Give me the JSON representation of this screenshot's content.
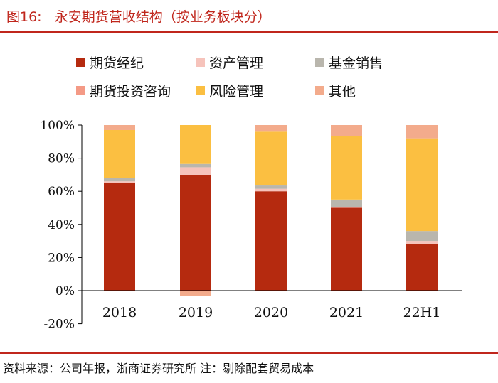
{
  "header": {
    "title": "图16:   永安期货营收结构（按业务板块分）"
  },
  "footer": {
    "source": "资料来源：公司年报，浙商证券研究所 注：剔除配套贸易成本"
  },
  "chart_data": {
    "type": "bar",
    "stacked": true,
    "title": "永安期货营收结构（按业务板块分）",
    "categories": [
      "2018",
      "2019",
      "2020",
      "2021",
      "22H1"
    ],
    "ylim": [
      -20,
      100
    ],
    "yticks": [
      -20,
      0,
      20,
      40,
      60,
      80,
      100
    ],
    "ytick_labels": [
      "-20%",
      "0%",
      "20%",
      "40%",
      "60%",
      "80%",
      "100%"
    ],
    "legend_position": "top",
    "series": [
      {
        "name": "期货经纪",
        "color": "#b52a0f",
        "values": [
          65,
          70,
          60,
          50,
          28
        ]
      },
      {
        "name": "资产管理",
        "color": "#f6c3bb",
        "values": [
          1,
          4.5,
          1.5,
          0.5,
          2
        ]
      },
      {
        "name": "基金销售",
        "color": "#b9b6ad",
        "values": [
          2,
          2,
          2,
          4.5,
          6
        ]
      },
      {
        "name": "期货投资咨询",
        "color": "#f49a86",
        "values": [
          0,
          0,
          0,
          0,
          0
        ]
      },
      {
        "name": "风险管理",
        "color": "#fbbf41",
        "values": [
          29,
          23.5,
          32.5,
          38.5,
          56
        ]
      },
      {
        "name": "其他",
        "color": "#f3ab8c",
        "values": [
          3,
          -3,
          4,
          6.5,
          8
        ]
      }
    ]
  }
}
